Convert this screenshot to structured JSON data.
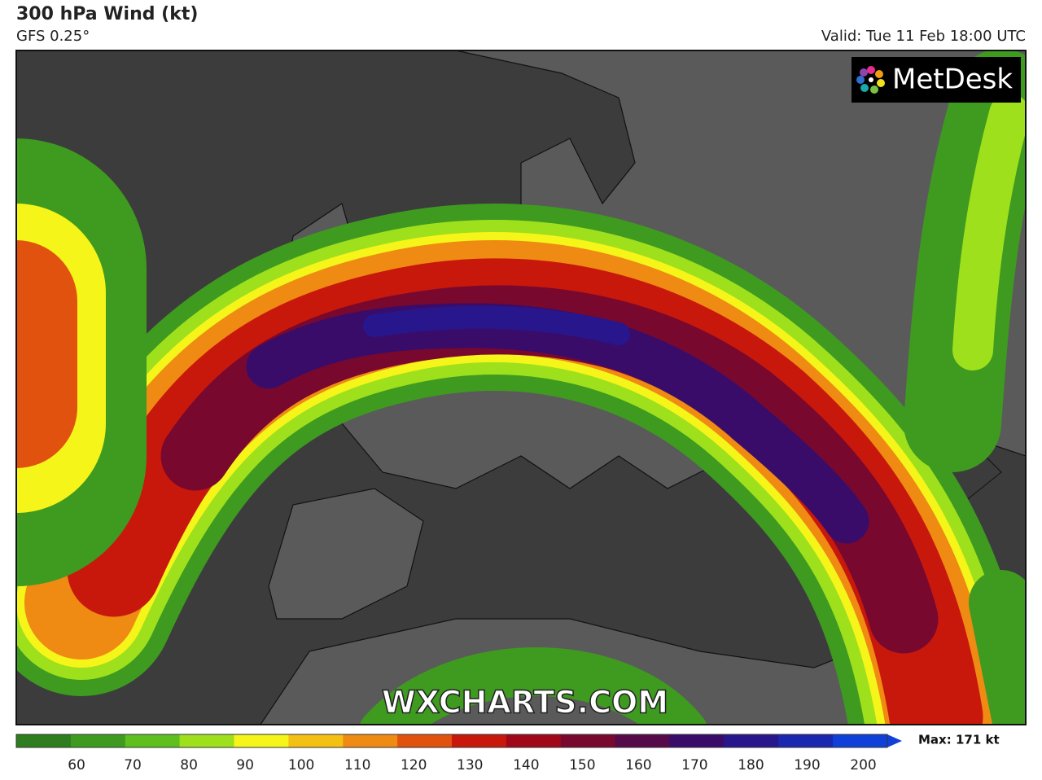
{
  "header": {
    "title": "300 hPa Wind (kt)",
    "subtitle": "GFS 0.25°",
    "valid": "Valid: Tue 11 Feb 18:00 UTC"
  },
  "logo": "MetDesk",
  "watermark": "WXCHARTS.COM",
  "colorbar": {
    "ticks": [
      60,
      70,
      80,
      90,
      100,
      110,
      120,
      130,
      140,
      150,
      160,
      170,
      180,
      190,
      200
    ],
    "range": [
      50,
      205
    ],
    "colors": [
      "#2e7d1e",
      "#3f9a20",
      "#5fbf1f",
      "#9ee01c",
      "#f5f51a",
      "#f5c014",
      "#ef8a12",
      "#e0520e",
      "#c8180c",
      "#a0081a",
      "#78082e",
      "#560a4a",
      "#3a0c6a",
      "#28168c",
      "#1a28b0",
      "#1040d8"
    ],
    "max_label": "Max: 171 kt"
  }
}
